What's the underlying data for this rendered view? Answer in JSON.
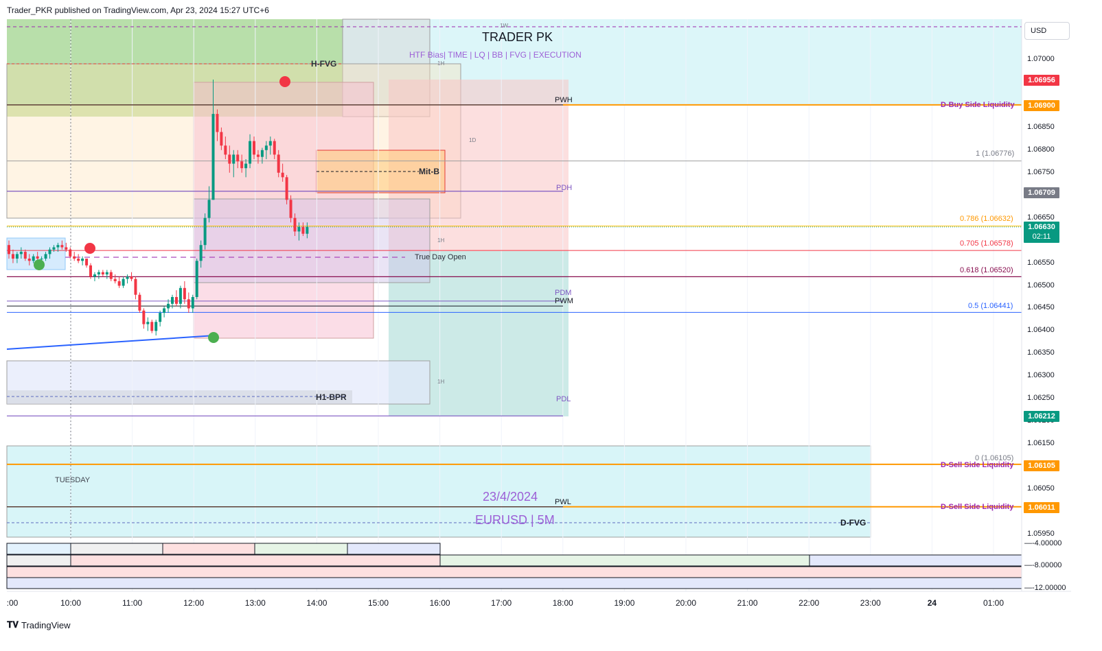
{
  "header": {
    "publisher_line": "Trader_PKR published on TradingView.com, Apr 23, 2024 15:27 UTC+6"
  },
  "brand": {
    "name": "TradingView"
  },
  "chart_title": "TRADER PK",
  "subtitle": "HTF Bias| TIME  |  LQ  |  BB  |  FVG  | EXECUTION",
  "date_label": "23/4/2024",
  "symbol_label": "EURUSD | 5M",
  "day_label": "TUESDAY",
  "currency": "USD",
  "zone_labels": {
    "h_fvg": "H-FVG",
    "mit_b": "Mit-B",
    "true_day_open": "True Day Open",
    "h1_bpr": "H1-BPR",
    "d_fvg": "D-FVG",
    "tf_1w": "1W",
    "tf_1h_a": "1H",
    "tf_1d": "1D",
    "tf_1h_b": "1H",
    "tf_1h_c": "1H"
  },
  "level_labels": {
    "pwh": "PWH",
    "pdh": "PDH",
    "pdm": "PDM",
    "pwm": "PWM",
    "pdl": "PDL",
    "pwl": "PWL",
    "d_buy": "D-Buy Side Liquidity",
    "d_sell_1": "D-Sell Side Liquidity",
    "d_sell_2": "D-Sell Side Liquidity"
  },
  "fib_labels": {
    "f1": "1 (1.06776)",
    "f786": "0.786 (1.06632)",
    "f705": "0.705 (1.06578)",
    "f618": "0.618 (1.06520)",
    "f5": "0.5 (1.06441)",
    "f0": "0 (1.06105)"
  },
  "price_axis": [
    "1.07000",
    "1.06850",
    "1.06800",
    "1.06750",
    "1.06650",
    "1.06600",
    "1.06550",
    "1.06500",
    "1.06450",
    "1.06400",
    "1.06350",
    "1.06300",
    "1.06250",
    "1.06200",
    "1.06150",
    "1.06050",
    "1.05950"
  ],
  "price_badges": {
    "pwh_top": "1.06956",
    "buy_side": "1.06900",
    "pdh": "1.06709",
    "current": "1.06630",
    "countdown": "02:11",
    "low": "1.06212",
    "sell_side_1": "1.06105",
    "sell_side_2": "1.06011"
  },
  "badge_colors": {
    "pwh_top": "#f23645",
    "buy_side": "#ff9800",
    "pdh": "#787b86",
    "current": "#089981",
    "low": "#089981",
    "sell_side_1": "#ff9800",
    "sell_side_2": "#ff9800"
  },
  "osc_axis": [
    "-4.00000",
    "-8.00000",
    "-12.00000"
  ],
  "time_axis": [
    ":00",
    "10:00",
    "11:00",
    "12:00",
    "13:00",
    "14:00",
    "15:00",
    "16:00",
    "17:00",
    "18:00",
    "19:00",
    "20:00",
    "21:00",
    "22:00",
    "23:00",
    "24",
    "01:00"
  ],
  "chart_data": {
    "type": "candlestick",
    "timeframe": "5M",
    "symbol": "EURUSD",
    "ylim": [
      1.0595,
      1.0705
    ],
    "candles": [
      [
        1.0659,
        1.066,
        1.0656,
        1.0657
      ],
      [
        1.0657,
        1.0658,
        1.0655,
        1.0656
      ],
      [
        1.0656,
        1.06575,
        1.0655,
        1.0657
      ],
      [
        1.0657,
        1.06585,
        1.0656,
        1.06575
      ],
      [
        1.06575,
        1.0658,
        1.06555,
        1.0656
      ],
      [
        1.0656,
        1.0657,
        1.06545,
        1.06555
      ],
      [
        1.06555,
        1.0657,
        1.0655,
        1.06565
      ],
      [
        1.06565,
        1.06575,
        1.06555,
        1.0656
      ],
      [
        1.0656,
        1.06565,
        1.0655,
        1.0656
      ],
      [
        1.0656,
        1.06575,
        1.06555,
        1.0657
      ],
      [
        1.0657,
        1.06585,
        1.0656,
        1.0658
      ],
      [
        1.0658,
        1.0659,
        1.06575,
        1.06585
      ],
      [
        1.06585,
        1.06595,
        1.06575,
        1.0659
      ],
      [
        1.0659,
        1.066,
        1.0658,
        1.06585
      ],
      [
        1.06585,
        1.06595,
        1.06575,
        1.0658
      ],
      [
        1.0658,
        1.06585,
        1.0656,
        1.06565
      ],
      [
        1.06565,
        1.06575,
        1.06555,
        1.0656
      ],
      [
        1.0656,
        1.0657,
        1.0655,
        1.06555
      ],
      [
        1.06555,
        1.06565,
        1.06545,
        1.0656
      ],
      [
        1.0656,
        1.0656,
        1.0654,
        1.06545
      ],
      [
        1.06545,
        1.0655,
        1.06515,
        1.0652
      ],
      [
        1.0652,
        1.0653,
        1.0651,
        1.06525
      ],
      [
        1.06525,
        1.06535,
        1.06515,
        1.0653
      ],
      [
        1.0653,
        1.06535,
        1.0652,
        1.06525
      ],
      [
        1.06525,
        1.06535,
        1.06515,
        1.0653
      ],
      [
        1.0653,
        1.06535,
        1.0651,
        1.06515
      ],
      [
        1.06515,
        1.06525,
        1.06505,
        1.0651
      ],
      [
        1.0651,
        1.0652,
        1.06495,
        1.065
      ],
      [
        1.065,
        1.0652,
        1.06495,
        1.06515
      ],
      [
        1.06515,
        1.06525,
        1.06505,
        1.0652
      ],
      [
        1.0652,
        1.0653,
        1.0651,
        1.06515
      ],
      [
        1.06515,
        1.0652,
        1.0647,
        1.0648
      ],
      [
        1.0648,
        1.06485,
        1.0644,
        1.06445
      ],
      [
        1.06445,
        1.0645,
        1.06405,
        1.06415
      ],
      [
        1.06415,
        1.0643,
        1.064,
        1.0642
      ],
      [
        1.0642,
        1.06425,
        1.06395,
        1.064
      ],
      [
        1.064,
        1.06425,
        1.0639,
        1.0642
      ],
      [
        1.0642,
        1.06445,
        1.0641,
        1.0644
      ],
      [
        1.0644,
        1.06455,
        1.0643,
        1.0645
      ],
      [
        1.0645,
        1.0647,
        1.0644,
        1.0646
      ],
      [
        1.0646,
        1.0648,
        1.0645,
        1.06475
      ],
      [
        1.06475,
        1.0649,
        1.06455,
        1.0646
      ],
      [
        1.0646,
        1.065,
        1.0645,
        1.06495
      ],
      [
        1.06495,
        1.0651,
        1.0646,
        1.0647
      ],
      [
        1.0647,
        1.06485,
        1.0644,
        1.0645
      ],
      [
        1.0645,
        1.0648,
        1.0644,
        1.06475
      ],
      [
        1.06475,
        1.0656,
        1.0647,
        1.06555
      ],
      [
        1.06555,
        1.066,
        1.0654,
        1.0659
      ],
      [
        1.0659,
        1.0666,
        1.0658,
        1.0665
      ],
      [
        1.0665,
        1.0672,
        1.0664,
        1.0669
      ],
      [
        1.0669,
        1.06956,
        1.0669,
        1.0688
      ],
      [
        1.0688,
        1.0689,
        1.0682,
        1.0684
      ],
      [
        1.0684,
        1.0685,
        1.068,
        1.0681
      ],
      [
        1.0681,
        1.0683,
        1.0678,
        1.0679
      ],
      [
        1.0679,
        1.0681,
        1.0675,
        1.0677
      ],
      [
        1.0677,
        1.068,
        1.0674,
        1.0679
      ],
      [
        1.0679,
        1.068,
        1.0676,
        1.06775
      ],
      [
        1.06775,
        1.0679,
        1.0675,
        1.0676
      ],
      [
        1.0676,
        1.0678,
        1.0674,
        1.0677
      ],
      [
        1.0677,
        1.06835,
        1.0676,
        1.0682
      ],
      [
        1.0682,
        1.0683,
        1.0678,
        1.0679
      ],
      [
        1.0679,
        1.068,
        1.0677,
        1.06785
      ],
      [
        1.06785,
        1.06805,
        1.0677,
        1.068
      ],
      [
        1.068,
        1.0682,
        1.0678,
        1.0681
      ],
      [
        1.0681,
        1.0683,
        1.0679,
        1.0682
      ],
      [
        1.0682,
        1.06825,
        1.0678,
        1.0679
      ],
      [
        1.0679,
        1.068,
        1.0674,
        1.0675
      ],
      [
        1.0675,
        1.0677,
        1.0673,
        1.0674
      ],
      [
        1.0674,
        1.06745,
        1.0668,
        1.0669
      ],
      [
        1.0669,
        1.067,
        1.0664,
        1.0665
      ],
      [
        1.0665,
        1.0666,
        1.0661,
        1.0662
      ],
      [
        1.0662,
        1.0664,
        1.066,
        1.0663
      ],
      [
        1.0663,
        1.0664,
        1.0661,
        1.06615
      ],
      [
        1.06615,
        1.0664,
        1.06605,
        1.0663
      ]
    ],
    "levels": {
      "pwh": 1.069,
      "pdh": 1.06709,
      "pdm": 1.06466,
      "pwm": 1.06455,
      "pdl": 1.06212,
      "pwl": 1.06011,
      "true_day_open": 1.06563,
      "d_buy": 1.069,
      "d_sell_1": 1.06105,
      "d_sell_2": 1.06011
    },
    "fib": {
      "1": 1.06776,
      "0.786": 1.06632,
      "0.705": 1.06578,
      "0.618": 1.0652,
      "0.5": 1.06441,
      "0": 1.06105
    }
  }
}
